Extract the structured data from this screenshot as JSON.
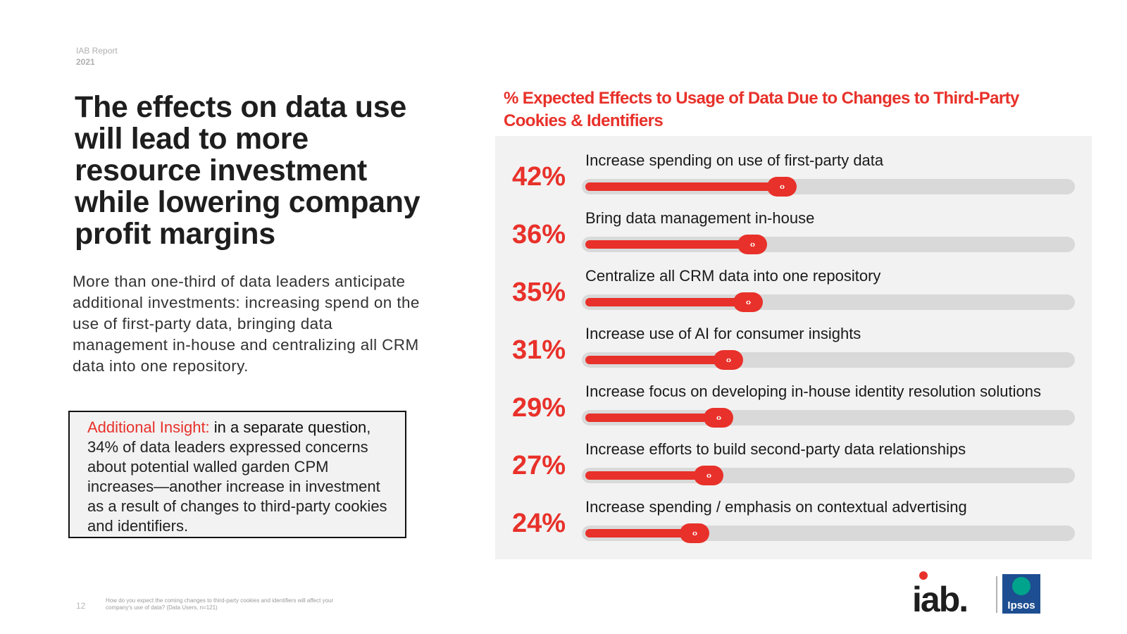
{
  "header": {
    "report_label": "IAB Report",
    "report_year": "2021"
  },
  "main": {
    "title": "The effects on data use will lead to more resource investment while lowering company profit margins",
    "intro": "More than one-third of data leaders anticipate additional investments: increasing spend on the use of first-party data, bringing data management in-house and centralizing all CRM data into one repository.",
    "insight": {
      "label": "Additional Insight:",
      "lead": "in a separate question",
      "body": ", 34% of data leaders expressed concerns about potential walled garden CPM increases—another increase in investment as a result of changes to third-party cookies and identifiers."
    }
  },
  "footer": {
    "page_number": "12",
    "footnote": "How do you expect the coming changes to third-party cookies and identifiers will affect your company's use of data? (Data Users, n=121)"
  },
  "logos": {
    "iab": "iab.",
    "ipsos": "Ipsos"
  },
  "colors": {
    "accent": "#e8312a",
    "track": "#d9d9d9",
    "panel": "#f2f2f2",
    "ipsos_blue": "#1d4e91",
    "ipsos_green": "#00a38b"
  },
  "chart_data": {
    "type": "bar",
    "orientation": "horizontal",
    "title": "% Expected Effects to Usage of Data Due to Changes to Third-Party Cookies & Identifiers",
    "categories": [
      "Increase spending on use of first-party data",
      "Bring data management in-house",
      "Centralize all CRM data into one repository",
      "Increase use of AI for consumer insights",
      "Increase focus on developing in-house identity resolution solutions",
      "Increase efforts to build second-party data relationships",
      "Increase spending / emphasis on contextual advertising"
    ],
    "values": [
      42,
      36,
      35,
      31,
      29,
      27,
      24
    ],
    "value_labels": [
      "42%",
      "36%",
      "35%",
      "31%",
      "29%",
      "27%",
      "24%"
    ],
    "xlim": [
      0,
      100
    ],
    "unit": "%",
    "knob_symbol": "‹›"
  }
}
